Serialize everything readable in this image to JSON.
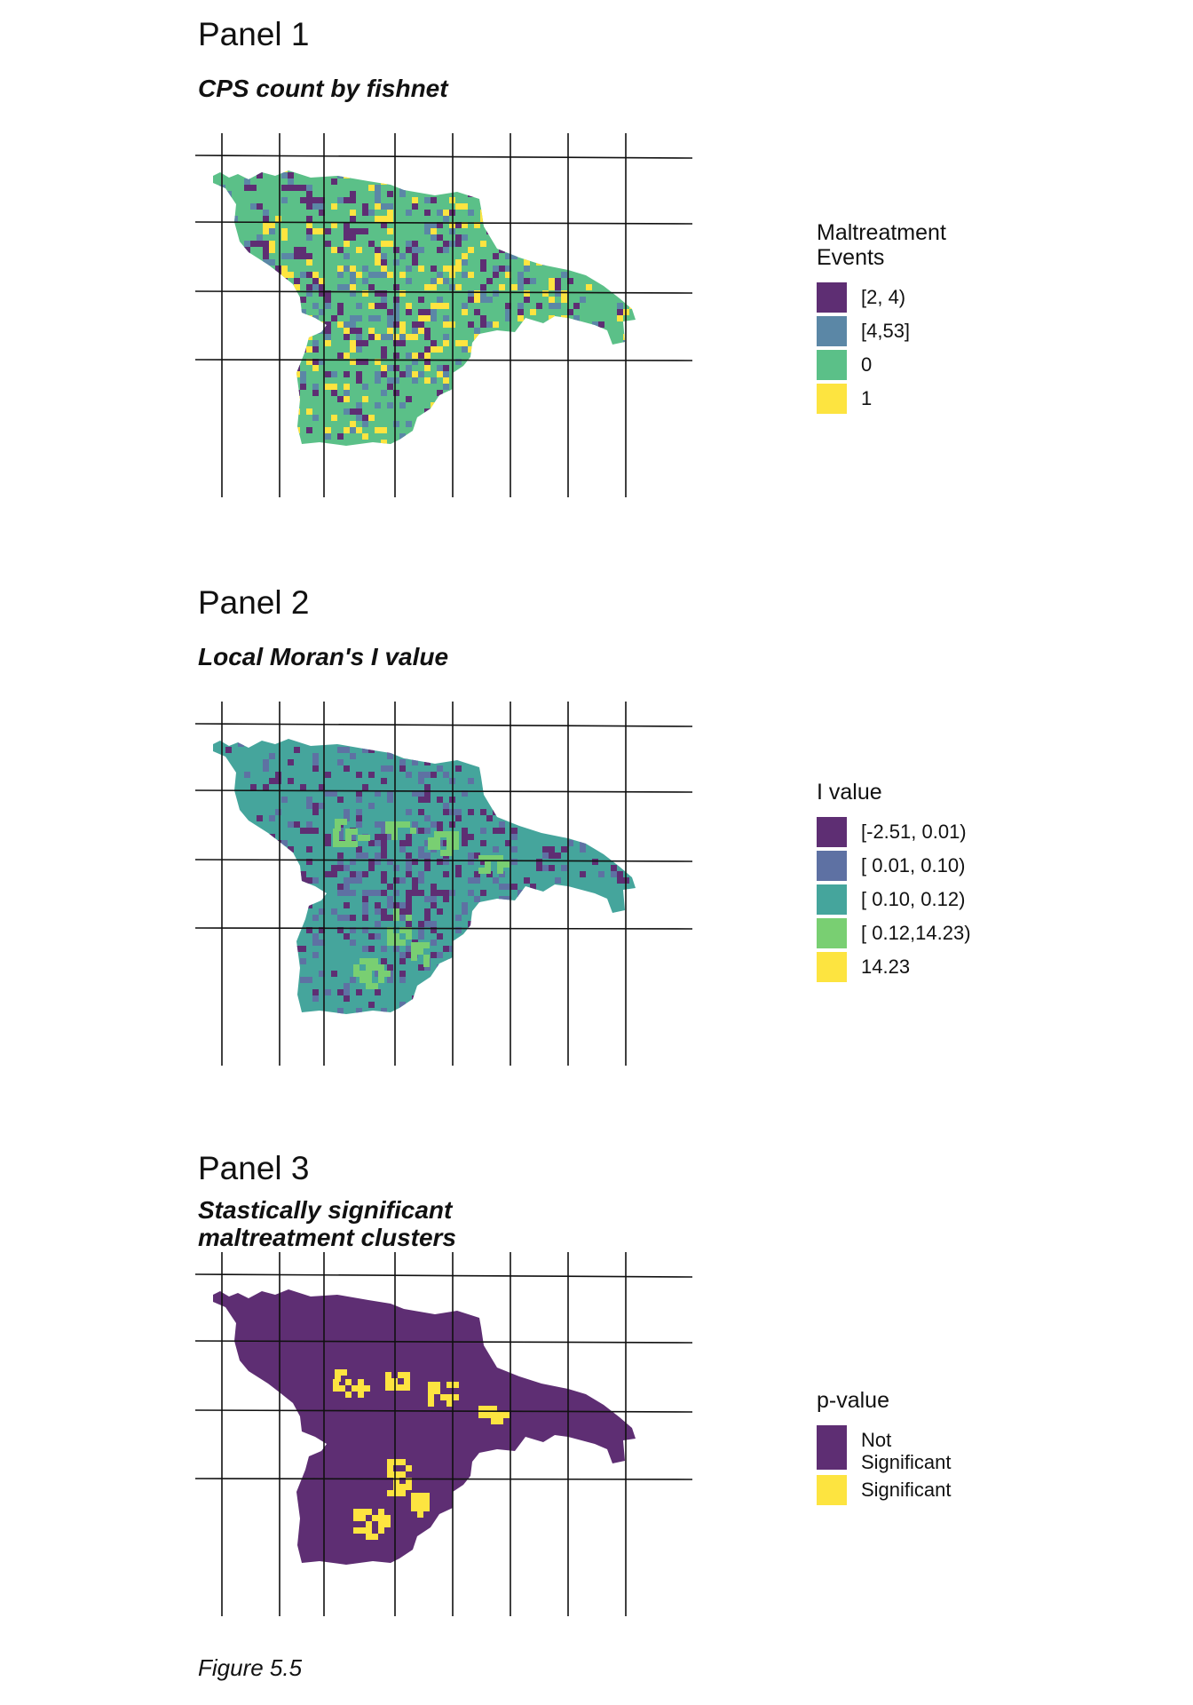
{
  "panels": [
    {
      "title": "Panel 1",
      "subtitle": "CPS count by fishnet",
      "map": {
        "base_fill": "#5BC088",
        "cell_colors": [
          "#5E2E73",
          "#5B87A6",
          "#FDE440"
        ],
        "cell_ratio": 0.36
      },
      "legend": {
        "title": "Maltreatment\nEvents",
        "items": [
          {
            "label": "[2, 4)",
            "color": "#5E2E73"
          },
          {
            "label": "[4,53]",
            "color": "#5B87A6"
          },
          {
            "label": "0",
            "color": "#5BC088"
          },
          {
            "label": "1",
            "color": "#FDE440"
          }
        ]
      }
    },
    {
      "title": "Panel 2",
      "subtitle": "Local Moran's I value",
      "map": {
        "base_fill": "#45A59C",
        "cell_colors": [
          "#5E2E73",
          "#5E71A3"
        ],
        "cell_ratio": 0.3,
        "cluster_color": "#79CF72"
      },
      "legend": {
        "title": "I value",
        "items": [
          {
            "label": "[-2.51, 0.01)",
            "color": "#5E2E73"
          },
          {
            "label": "[ 0.01, 0.10)",
            "color": "#5E71A3"
          },
          {
            "label": "[ 0.10, 0.12)",
            "color": "#45A59C"
          },
          {
            "label": "[ 0.12,14.23)",
            "color": "#79CF72"
          },
          {
            "label": "14.23",
            "color": "#FDE440"
          }
        ]
      }
    },
    {
      "title": "Panel 3",
      "subtitle": "Stastically significant\nmaltreatment clusters",
      "map": {
        "base_fill": "#5E2E73",
        "cluster_color": "#FDE440"
      },
      "legend": {
        "title": "p-value",
        "items": [
          {
            "label": "Not\nSignificant",
            "color": "#5E2E73"
          },
          {
            "label": "Significant",
            "color": "#FDE440"
          }
        ]
      }
    }
  ],
  "caption": "Figure 5.5"
}
